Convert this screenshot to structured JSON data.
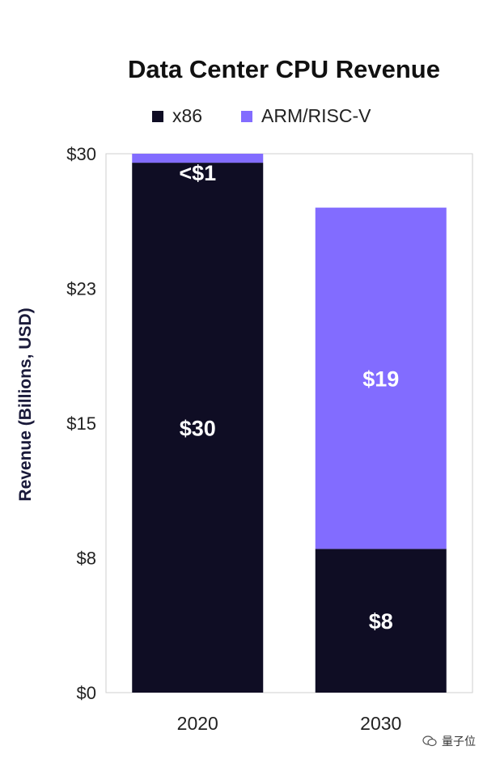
{
  "chart_data": {
    "type": "bar",
    "stacked": true,
    "title": "Data Center CPU Revenue",
    "xlabel": "",
    "ylabel": "Revenue (Billions, USD)",
    "categories": [
      "2020",
      "2030"
    ],
    "series": [
      {
        "name": "x86",
        "color": "#0f0d24",
        "values": [
          29.5,
          8.0
        ],
        "labels": [
          "$30",
          "$8"
        ]
      },
      {
        "name": "ARM/RISC-V",
        "color": "#826cff",
        "values": [
          0.5,
          19.0
        ],
        "labels": [
          "<$1",
          "$19"
        ]
      }
    ],
    "ylim": [
      0,
      30
    ],
    "yticks": [
      0,
      7.5,
      15,
      22.5,
      30
    ],
    "ytick_labels": [
      "$0",
      "$8",
      "$15",
      "$23",
      "$30"
    ],
    "grid": false,
    "legend_position": "top"
  },
  "watermark": {
    "text": "量子位",
    "icon": "wechat-icon"
  }
}
